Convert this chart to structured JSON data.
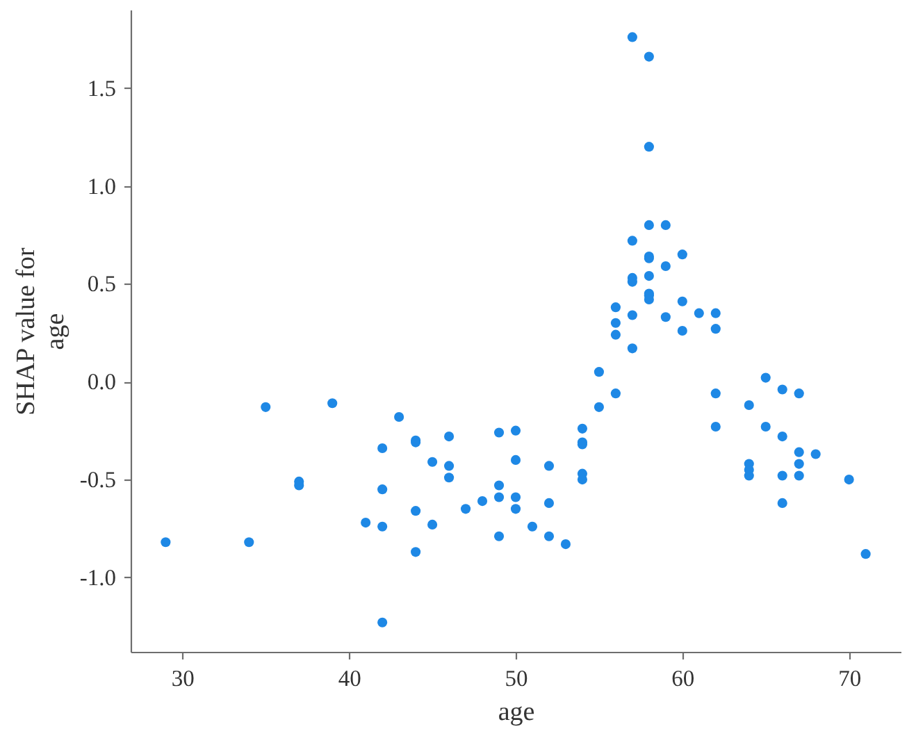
{
  "chart_data": {
    "type": "scatter",
    "xlabel": "age",
    "ylabel": "SHAP value for\nage",
    "marker": "circle",
    "xlim": [
      26.9,
      73.1
    ],
    "ylim": [
      -1.38,
      1.9
    ],
    "xticks": [
      30,
      40,
      50,
      60,
      70
    ],
    "yticks": [
      {
        "value": -1.0,
        "label": "-1.0"
      },
      {
        "value": -0.5,
        "label": "-0.5"
      },
      {
        "value": 0,
        "label": "0.0"
      },
      {
        "value": 0.5,
        "label": "0.5"
      },
      {
        "value": 1.0,
        "label": "1.0"
      },
      {
        "value": 1.5,
        "label": "1.5"
      }
    ],
    "x": [
      29,
      34,
      35,
      37,
      37,
      39,
      41,
      42,
      42,
      42,
      42,
      43,
      44,
      44,
      44,
      44,
      45,
      45,
      46,
      46,
      46,
      47,
      48,
      49,
      49,
      49,
      49,
      50,
      50,
      50,
      50,
      51,
      52,
      52,
      52,
      53,
      54,
      54,
      54,
      54,
      54,
      55,
      55,
      56,
      56,
      56,
      56,
      57,
      57,
      57,
      57,
      57,
      57,
      58,
      58,
      58,
      58,
      58,
      58,
      58,
      58,
      58,
      59,
      59,
      59,
      60,
      60,
      60,
      61,
      62,
      62,
      62,
      62,
      64,
      64,
      64,
      64,
      65,
      65,
      66,
      66,
      66,
      66,
      67,
      67,
      67,
      67,
      68,
      70,
      71
    ],
    "series": [
      {
        "color": "#1e88e5",
        "values": [
          -0.82,
          -0.82,
          -0.13,
          -0.51,
          -0.53,
          -0.11,
          -0.72,
          -0.34,
          -0.55,
          -0.74,
          -1.23,
          -0.18,
          -0.3,
          -0.31,
          -0.66,
          -0.87,
          -0.41,
          -0.73,
          -0.28,
          -0.43,
          -0.49,
          -0.65,
          -0.61,
          -0.26,
          -0.53,
          -0.59,
          -0.79,
          -0.25,
          -0.4,
          -0.59,
          -0.65,
          -0.74,
          -0.43,
          -0.62,
          -0.79,
          -0.83,
          -0.24,
          -0.31,
          -0.32,
          -0.47,
          -0.5,
          0.05,
          -0.13,
          0.38,
          0.3,
          0.24,
          -0.06,
          1.76,
          0.72,
          0.53,
          0.51,
          0.34,
          0.17,
          1.66,
          1.2,
          0.8,
          0.64,
          0.63,
          0.54,
          0.45,
          0.44,
          0.42,
          0.8,
          0.59,
          0.33,
          0.65,
          0.41,
          0.26,
          0.35,
          0.35,
          0.27,
          -0.06,
          -0.23,
          -0.12,
          -0.42,
          -0.45,
          -0.48,
          0.02,
          -0.23,
          -0.04,
          -0.28,
          -0.48,
          -0.62,
          -0.06,
          -0.36,
          -0.42,
          -0.48,
          -0.37,
          -0.5,
          -0.88
        ]
      }
    ]
  }
}
